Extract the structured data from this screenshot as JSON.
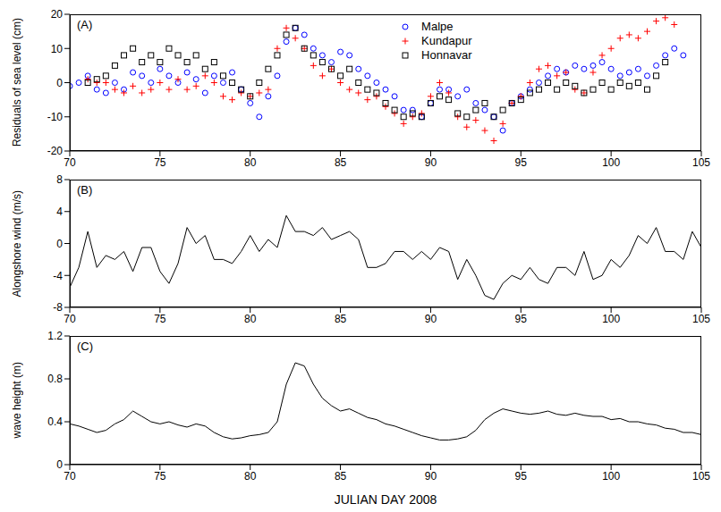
{
  "chart_data": [
    {
      "type": "scatter",
      "annotation": "(A)",
      "ylabel": "Residuals of sea level (cm)",
      "legend": "upper center",
      "xlim": [
        70,
        105
      ],
      "xticks": [
        70,
        75,
        80,
        85,
        90,
        95,
        100,
        105
      ],
      "ylim": [
        -20,
        20
      ],
      "yticks": [
        -20,
        -10,
        0,
        10,
        20
      ],
      "x": [
        70,
        70.5,
        71,
        71.5,
        72,
        72.5,
        73,
        73.5,
        74,
        74.5,
        75,
        75.5,
        76,
        76.5,
        77,
        77.5,
        78,
        78.5,
        79,
        79.5,
        80,
        80.5,
        81,
        81.5,
        82,
        82.5,
        83,
        83.5,
        84,
        84.5,
        85,
        85.5,
        86,
        86.5,
        87,
        87.5,
        88,
        88.5,
        89,
        89.5,
        90,
        90.5,
        91,
        91.5,
        92,
        92.5,
        93,
        93.5,
        94,
        94.5,
        95,
        95.5,
        96,
        96.5,
        97,
        97.5,
        98,
        98.5,
        99,
        99.5,
        100,
        100.5,
        101,
        101.5,
        102,
        102.5,
        103,
        103.5,
        104
      ],
      "series": [
        {
          "name": "Malpe",
          "color": "#0000ff",
          "marker": "circle",
          "values": [
            -1,
            0,
            2,
            -2,
            -3,
            0,
            -2,
            3,
            2,
            0,
            4,
            2,
            0,
            3,
            1,
            -3,
            2,
            0,
            3,
            -2,
            -6,
            -10,
            -4,
            2,
            12,
            16,
            14,
            10,
            8,
            6,
            9,
            8,
            4,
            2,
            0,
            -2,
            -4,
            -8,
            -8,
            -10,
            -6,
            -2,
            -2,
            -4,
            -2,
            -6,
            -8,
            -10,
            -14,
            -6,
            -4,
            -2,
            0,
            2,
            4,
            3,
            5,
            4,
            5,
            6,
            4,
            2,
            3,
            4,
            2,
            5,
            8,
            10,
            8
          ]
        },
        {
          "name": "Kundapur",
          "color": "#ff0000",
          "marker": "plus",
          "values": [
            null,
            null,
            1,
            0,
            0,
            -2,
            -3,
            -1,
            -3,
            -2,
            0,
            -2,
            1,
            -2,
            -1,
            2,
            0,
            -4,
            -5,
            -3,
            -4,
            -3,
            -2,
            10,
            16,
            13,
            10,
            5,
            2,
            4,
            0,
            -2,
            -3,
            -5,
            -4,
            -7,
            -9,
            -12,
            -10,
            -9,
            -4,
            0,
            -3,
            -10,
            -13,
            -11,
            -14,
            -17,
            -12,
            -6,
            -4,
            0,
            4,
            5,
            2,
            3,
            -2,
            -3,
            3,
            8,
            10,
            13,
            14,
            13,
            15,
            18,
            19,
            17,
            null
          ]
        },
        {
          "name": "Honnavar",
          "color": "#000000",
          "marker": "square",
          "values": [
            null,
            null,
            0,
            1,
            2,
            5,
            8,
            10,
            6,
            8,
            6,
            10,
            8,
            6,
            8,
            4,
            6,
            2,
            0,
            -2,
            -4,
            0,
            4,
            8,
            14,
            16,
            10,
            8,
            6,
            4,
            2,
            4,
            0,
            -2,
            -3,
            -6,
            -8,
            -10,
            -9,
            -10,
            -6,
            -4,
            -5,
            -9,
            -10,
            -8,
            -6,
            -10,
            -8,
            -6,
            -5,
            -3,
            -2,
            0,
            -2,
            0,
            -1,
            -3,
            -2,
            0,
            -2,
            0,
            -1,
            0,
            -2,
            2,
            6,
            null,
            null
          ]
        }
      ]
    },
    {
      "type": "line",
      "annotation": "(B)",
      "ylabel": "Alongshore wind (m/s)",
      "color": "#000000",
      "xlim": [
        70,
        105
      ],
      "xticks": [
        70,
        75,
        80,
        85,
        90,
        95,
        100,
        105
      ],
      "ylim": [
        -8,
        8
      ],
      "yticks": [
        -8,
        -4,
        0,
        4,
        8
      ],
      "x": [
        70,
        70.5,
        71,
        71.5,
        72,
        72.5,
        73,
        73.5,
        74,
        74.5,
        75,
        75.5,
        76,
        76.5,
        77,
        77.5,
        78,
        78.5,
        79,
        79.5,
        80,
        80.5,
        81,
        81.5,
        82,
        82.5,
        83,
        83.5,
        84,
        84.5,
        85,
        85.5,
        86,
        86.5,
        87,
        87.5,
        88,
        88.5,
        89,
        89.5,
        90,
        90.5,
        91,
        91.5,
        92,
        92.5,
        93,
        93.5,
        94,
        94.5,
        95,
        95.5,
        96,
        96.5,
        97,
        97.5,
        98,
        98.5,
        99,
        99.5,
        100,
        100.5,
        101,
        101.5,
        102,
        102.5,
        103,
        103.5,
        104,
        104.5,
        105
      ],
      "values": [
        -5.5,
        -3,
        1.5,
        -3,
        -1.5,
        -2,
        -1,
        -3.5,
        -0.5,
        -0.5,
        -3.5,
        -5,
        -2.5,
        2,
        0,
        1,
        -2,
        -2,
        -2.5,
        -1,
        1,
        -1,
        0.5,
        -0.5,
        3.5,
        1.5,
        1.5,
        1,
        2,
        0.5,
        1,
        1.5,
        0.5,
        -3,
        -3,
        -2.5,
        -1,
        -1,
        -2,
        -1,
        -2,
        -0.5,
        -1,
        -4.5,
        -2,
        -4,
        -6.5,
        -7,
        -5,
        -4,
        -4.5,
        -3,
        -4.5,
        -5,
        -3,
        -3,
        -4,
        -1,
        -4.5,
        -4,
        -2,
        -3,
        -1.5,
        1,
        0,
        2,
        -1,
        -1,
        -2,
        1.5,
        -0.5
      ]
    },
    {
      "type": "line",
      "annotation": "(C)",
      "ylabel": "wave height (m)",
      "xlabel": "JULIAN DAY 2008",
      "color": "#000000",
      "xlim": [
        70,
        105
      ],
      "xticks": [
        70,
        75,
        80,
        85,
        90,
        95,
        100,
        105
      ],
      "ylim": [
        0,
        1.2
      ],
      "yticks": [
        0,
        0.4,
        0.8,
        1.2
      ],
      "x": [
        70,
        70.5,
        71,
        71.5,
        72,
        72.5,
        73,
        73.5,
        74,
        74.5,
        75,
        75.5,
        76,
        76.5,
        77,
        77.5,
        78,
        78.5,
        79,
        79.5,
        80,
        80.5,
        81,
        81.5,
        82,
        82.5,
        83,
        83.5,
        84,
        84.5,
        85,
        85.5,
        86,
        86.5,
        87,
        87.5,
        88,
        88.5,
        89,
        89.5,
        90,
        90.5,
        91,
        91.5,
        92,
        92.5,
        93,
        93.5,
        94,
        94.5,
        95,
        95.5,
        96,
        96.5,
        97,
        97.5,
        98,
        98.5,
        99,
        99.5,
        100,
        100.5,
        101,
        101.5,
        102,
        102.5,
        103,
        103.5,
        104,
        104.5,
        105
      ],
      "values": [
        0.38,
        0.36,
        0.33,
        0.3,
        0.32,
        0.38,
        0.42,
        0.5,
        0.45,
        0.4,
        0.38,
        0.4,
        0.37,
        0.35,
        0.38,
        0.36,
        0.3,
        0.26,
        0.24,
        0.25,
        0.27,
        0.28,
        0.3,
        0.4,
        0.75,
        0.95,
        0.92,
        0.75,
        0.62,
        0.55,
        0.5,
        0.52,
        0.48,
        0.44,
        0.42,
        0.38,
        0.36,
        0.33,
        0.3,
        0.27,
        0.25,
        0.23,
        0.23,
        0.24,
        0.26,
        0.32,
        0.42,
        0.48,
        0.52,
        0.5,
        0.48,
        0.47,
        0.48,
        0.5,
        0.47,
        0.46,
        0.48,
        0.46,
        0.45,
        0.45,
        0.42,
        0.43,
        0.4,
        0.4,
        0.38,
        0.37,
        0.34,
        0.33,
        0.3,
        0.3,
        0.28
      ]
    }
  ]
}
